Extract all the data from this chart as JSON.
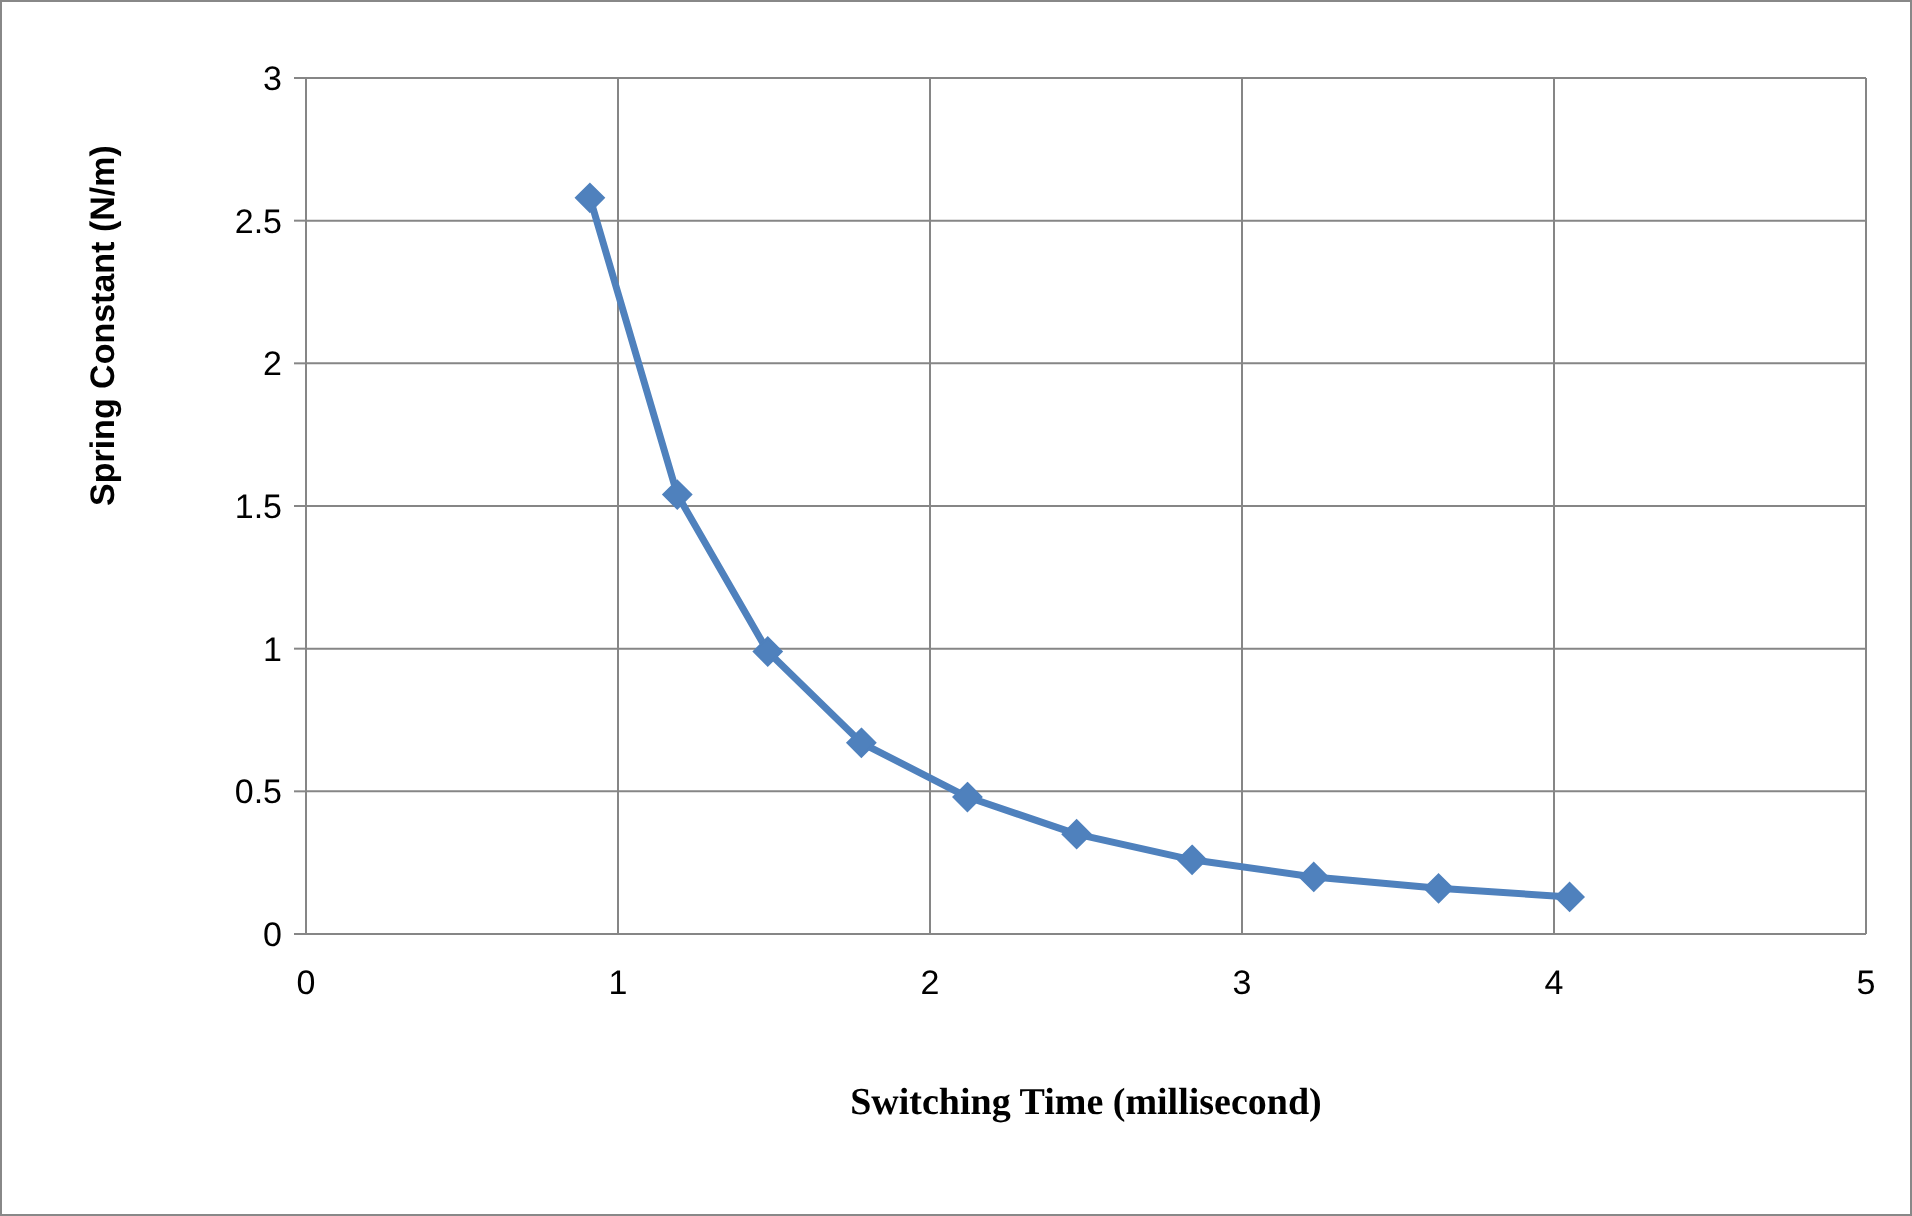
{
  "chart_data": {
    "type": "line",
    "xlabel": "Switching Time (millisecond)",
    "ylabel": "Spring Constant (N/m)",
    "series": [
      {
        "color": "#4f81bd",
        "x": [
          0.91,
          1.19,
          1.48,
          1.78,
          2.12,
          2.47,
          2.84,
          3.23,
          3.63,
          4.05
        ],
        "values": [
          2.58,
          1.54,
          0.99,
          0.67,
          0.48,
          0.35,
          0.26,
          0.2,
          0.16,
          0.13
        ]
      }
    ],
    "xlim": [
      0,
      5
    ],
    "xticks": [
      0,
      1,
      2,
      3,
      4,
      5
    ],
    "ylim": [
      0,
      3
    ],
    "yticks": [
      0,
      0.5,
      1,
      1.5,
      2,
      2.5,
      3
    ],
    "grid": true,
    "marker": "diamond",
    "line_style": "solid"
  }
}
